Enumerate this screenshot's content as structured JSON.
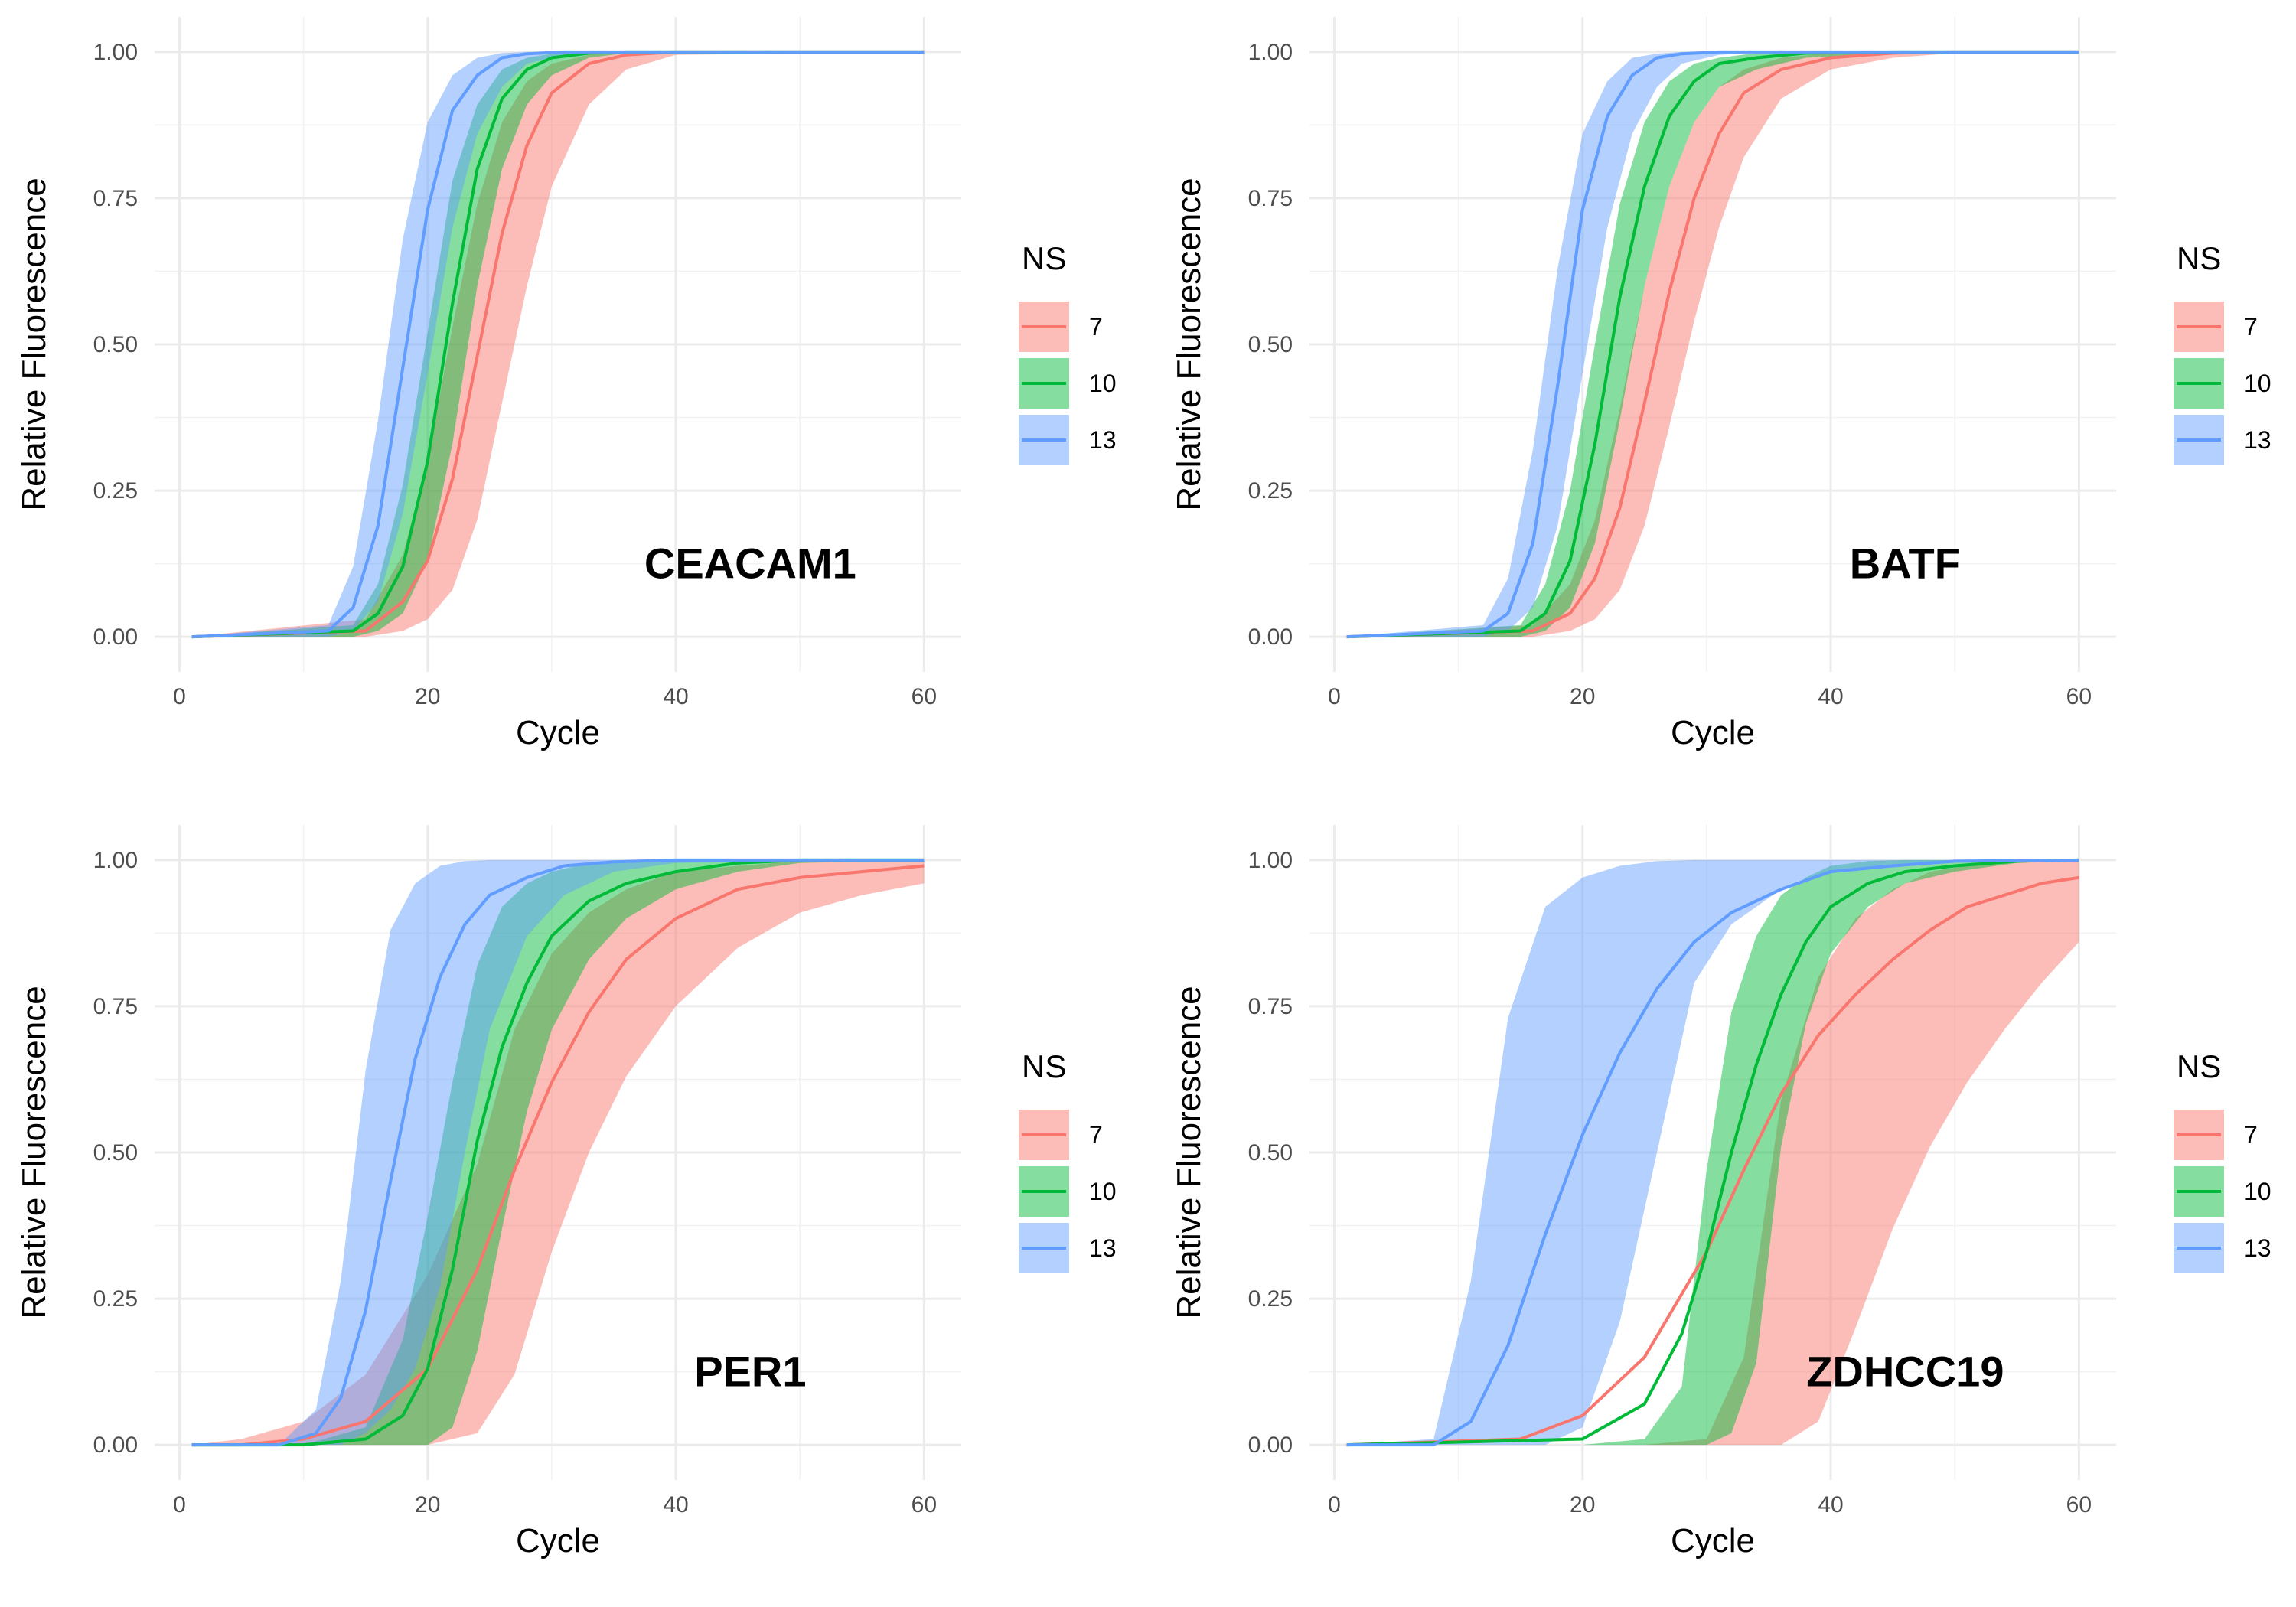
{
  "chart_data": [
    {
      "type": "area",
      "gene": "CEACAM1",
      "xlabel": "Cycle",
      "ylabel": "Relative Fluorescence",
      "xlim": [
        1,
        60
      ],
      "ylim": [
        0,
        1
      ],
      "x_ticks": [
        "0",
        "20",
        "40",
        "60"
      ],
      "y_ticks": [
        "0.00",
        "0.25",
        "0.50",
        "0.75",
        "1.00"
      ],
      "grid": true,
      "legend_title": "NS",
      "legend_position": "right",
      "series": [
        {
          "name": "7",
          "color": "#F8766D",
          "x": [
            1,
            15,
            18,
            20,
            22,
            24,
            26,
            28,
            30,
            33,
            36,
            40,
            60
          ],
          "y": [
            0.0,
            0.01,
            0.06,
            0.13,
            0.27,
            0.48,
            0.69,
            0.84,
            0.93,
            0.98,
            0.995,
            1.0,
            1.0
          ],
          "lower": [
            0.0,
            0.0,
            0.01,
            0.03,
            0.08,
            0.2,
            0.4,
            0.6,
            0.77,
            0.91,
            0.97,
            0.995,
            1.0
          ],
          "upper": [
            0.0,
            0.03,
            0.14,
            0.3,
            0.53,
            0.74,
            0.88,
            0.95,
            0.98,
            0.995,
            1.0,
            1.0,
            1.0
          ]
        },
        {
          "name": "10",
          "color": "#00BA38",
          "x": [
            1,
            14,
            16,
            18,
            20,
            22,
            24,
            26,
            28,
            30,
            33,
            36,
            40,
            60
          ],
          "y": [
            0.0,
            0.01,
            0.04,
            0.12,
            0.3,
            0.57,
            0.8,
            0.92,
            0.97,
            0.99,
            0.998,
            1.0,
            1.0,
            1.0
          ],
          "lower": [
            0.0,
            0.0,
            0.01,
            0.04,
            0.13,
            0.33,
            0.6,
            0.8,
            0.91,
            0.96,
            0.99,
            0.998,
            1.0,
            1.0
          ],
          "upper": [
            0.0,
            0.02,
            0.09,
            0.26,
            0.52,
            0.78,
            0.91,
            0.97,
            0.99,
            0.997,
            1.0,
            1.0,
            1.0,
            1.0
          ]
        },
        {
          "name": "13",
          "color": "#619CFF",
          "x": [
            1,
            12,
            14,
            16,
            18,
            20,
            22,
            24,
            26,
            28,
            31,
            35,
            40,
            60
          ],
          "y": [
            0.0,
            0.01,
            0.05,
            0.19,
            0.46,
            0.73,
            0.9,
            0.96,
            0.99,
            0.997,
            1.0,
            1.0,
            1.0,
            1.0
          ],
          "lower": [
            0.0,
            0.0,
            0.01,
            0.06,
            0.21,
            0.45,
            0.7,
            0.86,
            0.94,
            0.98,
            0.995,
            1.0,
            1.0,
            1.0
          ],
          "upper": [
            0.0,
            0.02,
            0.12,
            0.37,
            0.68,
            0.88,
            0.96,
            0.99,
            0.998,
            1.0,
            1.0,
            1.0,
            1.0,
            1.0
          ]
        }
      ]
    },
    {
      "type": "area",
      "gene": "BATF",
      "xlabel": "Cycle",
      "ylabel": "Relative Fluorescence",
      "xlim": [
        1,
        60
      ],
      "ylim": [
        0,
        1
      ],
      "x_ticks": [
        "0",
        "20",
        "40",
        "60"
      ],
      "y_ticks": [
        "0.00",
        "0.25",
        "0.50",
        "0.75",
        "1.00"
      ],
      "grid": true,
      "legend_title": "NS",
      "legend_position": "right",
      "series": [
        {
          "name": "7",
          "color": "#F8766D",
          "x": [
            1,
            16,
            19,
            21,
            23,
            25,
            27,
            29,
            31,
            33,
            36,
            40,
            45,
            50,
            60
          ],
          "y": [
            0.0,
            0.01,
            0.04,
            0.1,
            0.22,
            0.4,
            0.59,
            0.75,
            0.86,
            0.93,
            0.97,
            0.99,
            0.998,
            1.0,
            1.0
          ],
          "lower": [
            0.0,
            0.0,
            0.01,
            0.03,
            0.08,
            0.19,
            0.36,
            0.54,
            0.7,
            0.82,
            0.92,
            0.97,
            0.99,
            0.998,
            1.0
          ],
          "upper": [
            0.0,
            0.02,
            0.09,
            0.2,
            0.39,
            0.6,
            0.77,
            0.88,
            0.94,
            0.97,
            0.99,
            0.998,
            1.0,
            1.0,
            1.0
          ]
        },
        {
          "name": "10",
          "color": "#00BA38",
          "x": [
            1,
            15,
            17,
            19,
            21,
            23,
            25,
            27,
            29,
            31,
            34,
            38,
            45,
            60
          ],
          "y": [
            0.0,
            0.01,
            0.04,
            0.13,
            0.33,
            0.58,
            0.77,
            0.89,
            0.95,
            0.98,
            0.99,
            0.998,
            1.0,
            1.0
          ],
          "lower": [
            0.0,
            0.0,
            0.01,
            0.05,
            0.16,
            0.37,
            0.6,
            0.77,
            0.88,
            0.94,
            0.97,
            0.99,
            0.998,
            1.0
          ],
          "upper": [
            0.0,
            0.02,
            0.09,
            0.25,
            0.5,
            0.74,
            0.88,
            0.95,
            0.98,
            0.99,
            0.998,
            1.0,
            1.0,
            1.0
          ]
        },
        {
          "name": "13",
          "color": "#619CFF",
          "x": [
            1,
            12,
            14,
            16,
            18,
            20,
            22,
            24,
            26,
            28,
            31,
            35,
            40,
            60
          ],
          "y": [
            0.0,
            0.01,
            0.04,
            0.16,
            0.43,
            0.73,
            0.89,
            0.96,
            0.99,
            0.997,
            1.0,
            1.0,
            1.0,
            1.0
          ],
          "lower": [
            0.0,
            0.0,
            0.01,
            0.05,
            0.19,
            0.45,
            0.7,
            0.86,
            0.94,
            0.98,
            0.995,
            1.0,
            1.0,
            1.0
          ],
          "upper": [
            0.0,
            0.02,
            0.1,
            0.32,
            0.63,
            0.86,
            0.95,
            0.99,
            0.997,
            1.0,
            1.0,
            1.0,
            1.0,
            1.0
          ]
        }
      ]
    },
    {
      "type": "area",
      "gene": "PER1",
      "xlabel": "Cycle",
      "ylabel": "Relative Fluorescence",
      "xlim": [
        1,
        60
      ],
      "ylim": [
        0,
        1
      ],
      "x_ticks": [
        "0",
        "20",
        "40",
        "60"
      ],
      "y_ticks": [
        "0.00",
        "0.25",
        "0.50",
        "0.75",
        "1.00"
      ],
      "grid": true,
      "legend_title": "NS",
      "legend_position": "right",
      "series": [
        {
          "name": "7",
          "color": "#F8766D",
          "x": [
            1,
            5,
            10,
            15,
            20,
            24,
            27,
            30,
            33,
            36,
            40,
            45,
            50,
            55,
            60
          ],
          "y": [
            0.0,
            0.0,
            0.01,
            0.04,
            0.13,
            0.3,
            0.47,
            0.62,
            0.74,
            0.83,
            0.9,
            0.95,
            0.97,
            0.98,
            0.99
          ],
          "lower": [
            0.0,
            0.0,
            0.0,
            0.0,
            0.0,
            0.02,
            0.12,
            0.33,
            0.5,
            0.63,
            0.75,
            0.85,
            0.91,
            0.94,
            0.96
          ],
          "upper": [
            0.0,
            0.01,
            0.04,
            0.12,
            0.29,
            0.48,
            0.71,
            0.84,
            0.91,
            0.95,
            0.98,
            0.99,
            0.998,
            1.0,
            1.0
          ]
        },
        {
          "name": "10",
          "color": "#00BA38",
          "x": [
            1,
            10,
            15,
            18,
            20,
            22,
            24,
            26,
            28,
            30,
            33,
            36,
            40,
            45,
            50,
            60
          ],
          "y": [
            0.0,
            0.0,
            0.01,
            0.05,
            0.13,
            0.3,
            0.52,
            0.68,
            0.79,
            0.87,
            0.93,
            0.96,
            0.98,
            0.995,
            1.0,
            1.0
          ],
          "lower": [
            0.0,
            0.0,
            0.0,
            0.0,
            0.0,
            0.03,
            0.16,
            0.37,
            0.57,
            0.71,
            0.83,
            0.9,
            0.95,
            0.98,
            0.995,
            1.0
          ],
          "upper": [
            0.0,
            0.0,
            0.03,
            0.18,
            0.39,
            0.62,
            0.82,
            0.92,
            0.96,
            0.98,
            0.995,
            1.0,
            1.0,
            1.0,
            1.0,
            1.0
          ]
        },
        {
          "name": "13",
          "color": "#619CFF",
          "x": [
            1,
            8,
            11,
            13,
            15,
            17,
            19,
            21,
            23,
            25,
            28,
            31,
            35,
            40,
            60
          ],
          "y": [
            0.0,
            0.0,
            0.02,
            0.08,
            0.23,
            0.45,
            0.66,
            0.8,
            0.89,
            0.94,
            0.97,
            0.99,
            0.997,
            1.0,
            1.0
          ],
          "lower": [
            0.0,
            0.0,
            0.0,
            0.0,
            0.02,
            0.06,
            0.13,
            0.27,
            0.5,
            0.71,
            0.87,
            0.94,
            0.98,
            0.995,
            1.0
          ],
          "upper": [
            0.0,
            0.0,
            0.06,
            0.28,
            0.64,
            0.88,
            0.96,
            0.99,
            0.998,
            1.0,
            1.0,
            1.0,
            1.0,
            1.0,
            1.0
          ]
        }
      ]
    },
    {
      "type": "area",
      "gene": "ZDHCC19",
      "xlabel": "Cycle",
      "ylabel": "Relative Fluorescence",
      "xlim": [
        1,
        60
      ],
      "ylim": [
        0,
        1
      ],
      "x_ticks": [
        "0",
        "20",
        "40",
        "60"
      ],
      "y_ticks": [
        "0.00",
        "0.25",
        "0.50",
        "0.75",
        "1.00"
      ],
      "grid": true,
      "legend_title": "NS",
      "legend_position": "right",
      "series": [
        {
          "name": "7",
          "color": "#F8766D",
          "x": [
            1,
            15,
            20,
            25,
            30,
            33,
            36,
            39,
            42,
            45,
            48,
            51,
            54,
            57,
            60
          ],
          "y": [
            0.0,
            0.01,
            0.05,
            0.15,
            0.33,
            0.47,
            0.6,
            0.7,
            0.77,
            0.83,
            0.88,
            0.92,
            0.94,
            0.96,
            0.97
          ],
          "lower": [
            0.0,
            0.0,
            0.0,
            0.0,
            0.0,
            0.0,
            0.0,
            0.04,
            0.2,
            0.37,
            0.51,
            0.62,
            0.71,
            0.79,
            0.86
          ],
          "upper": [
            0.0,
            0.0,
            0.0,
            0.0,
            0.01,
            0.15,
            0.59,
            0.8,
            0.9,
            0.95,
            0.98,
            0.99,
            0.998,
            1.0,
            1.0
          ]
        },
        {
          "name": "10",
          "color": "#00BA38",
          "x": [
            1,
            20,
            25,
            28,
            30,
            32,
            34,
            36,
            38,
            40,
            43,
            46,
            50,
            55,
            60
          ],
          "y": [
            0.0,
            0.01,
            0.07,
            0.19,
            0.33,
            0.5,
            0.65,
            0.77,
            0.86,
            0.92,
            0.96,
            0.98,
            0.99,
            0.998,
            1.0
          ],
          "lower": [
            0.0,
            0.0,
            0.0,
            0.0,
            0.0,
            0.02,
            0.14,
            0.51,
            0.72,
            0.84,
            0.92,
            0.96,
            0.98,
            0.995,
            1.0
          ],
          "upper": [
            0.0,
            0.0,
            0.01,
            0.1,
            0.47,
            0.74,
            0.87,
            0.94,
            0.97,
            0.99,
            0.998,
            1.0,
            1.0,
            1.0,
            1.0
          ]
        },
        {
          "name": "13",
          "color": "#619CFF",
          "x": [
            1,
            8,
            11,
            14,
            17,
            20,
            23,
            26,
            29,
            32,
            36,
            40,
            45,
            50,
            60
          ],
          "y": [
            0.0,
            0.0,
            0.04,
            0.17,
            0.36,
            0.53,
            0.67,
            0.78,
            0.86,
            0.91,
            0.95,
            0.98,
            0.99,
            0.998,
            1.0
          ],
          "lower": [
            0.0,
            0.0,
            0.0,
            0.0,
            0.0,
            0.03,
            0.21,
            0.5,
            0.79,
            0.89,
            0.95,
            0.98,
            0.99,
            0.998,
            1.0
          ],
          "upper": [
            0.0,
            0.01,
            0.28,
            0.73,
            0.92,
            0.97,
            0.99,
            0.998,
            1.0,
            1.0,
            1.0,
            1.0,
            1.0,
            1.0,
            1.0
          ]
        }
      ]
    }
  ]
}
